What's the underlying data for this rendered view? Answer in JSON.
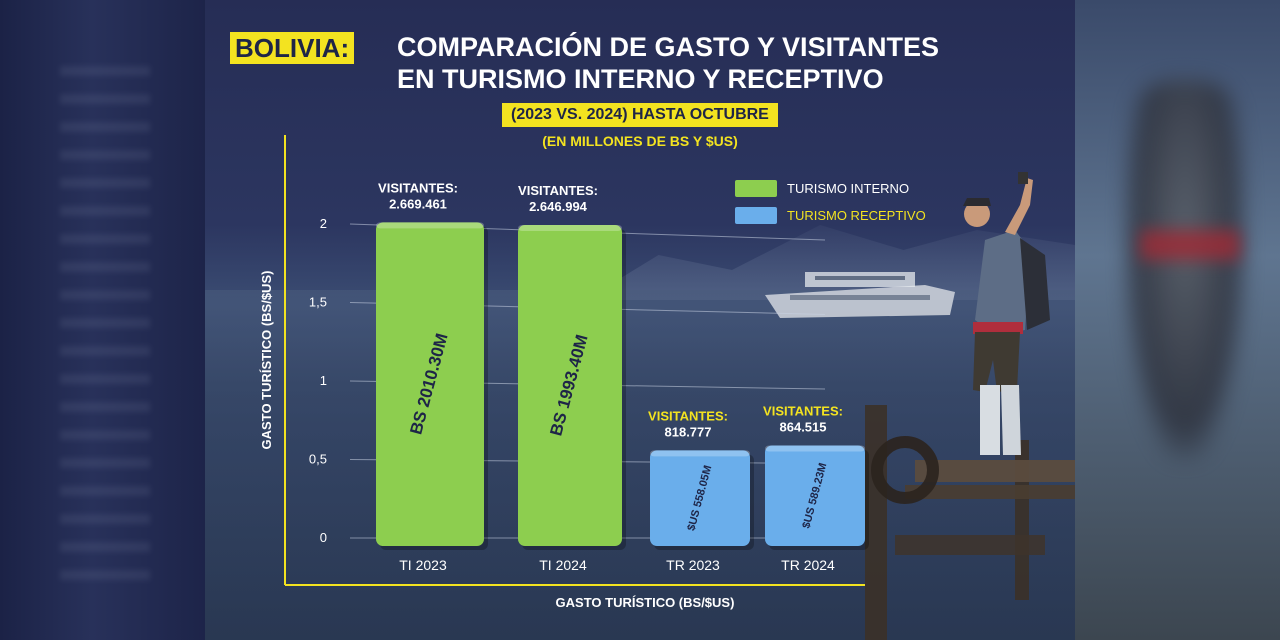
{
  "title": {
    "highlight": "BOLIVIA:",
    "line1": "COMPARACIÓN DE GASTO Y VISITANTES",
    "line2": "EN TURISMO INTERNO Y RECEPTIVO"
  },
  "subtitle": "(2023 VS. 2024) HASTA OCTUBRE",
  "units": "(EN MILLONES DE BS Y $US)",
  "colors": {
    "interno": "#8dce4f",
    "receptivo": "#6aaeeb",
    "accent": "#f3e320",
    "background": "#262d55"
  },
  "chart_data": {
    "type": "bar",
    "categories": [
      "TI 2023",
      "TI 2024",
      "TR 2023",
      "TR 2024"
    ],
    "values": [
      2.0103,
      1.9934,
      0.55805,
      0.58923
    ],
    "ylim": [
      0,
      2.2
    ],
    "yticks": [
      "0",
      "0,5",
      "1",
      "1,5",
      "2"
    ],
    "ytick_values": [
      0,
      0.5,
      1,
      1.5,
      2
    ],
    "ylabel": "GASTO TURÍSTICO (BS/$US)",
    "xlabel": "GASTO TURÍSTICO (BS/$US)",
    "bar_labels": [
      "BS 2010.30M",
      "BS 1993.40M",
      "$US 558.05M",
      "$US 589.23M"
    ],
    "visitor_caption": "VISITANTES:",
    "visitors": [
      "2.669.461",
      "2.646.994",
      "818.777",
      "864.515"
    ],
    "series_of_bar": [
      "interno",
      "interno",
      "receptivo",
      "receptivo"
    ],
    "legend": [
      {
        "label": "TURISMO INTERNO",
        "series": "interno"
      },
      {
        "label": "TURISMO RECEPTIVO",
        "series": "receptivo"
      }
    ],
    "legend_position": "top-right",
    "grid": true
  }
}
